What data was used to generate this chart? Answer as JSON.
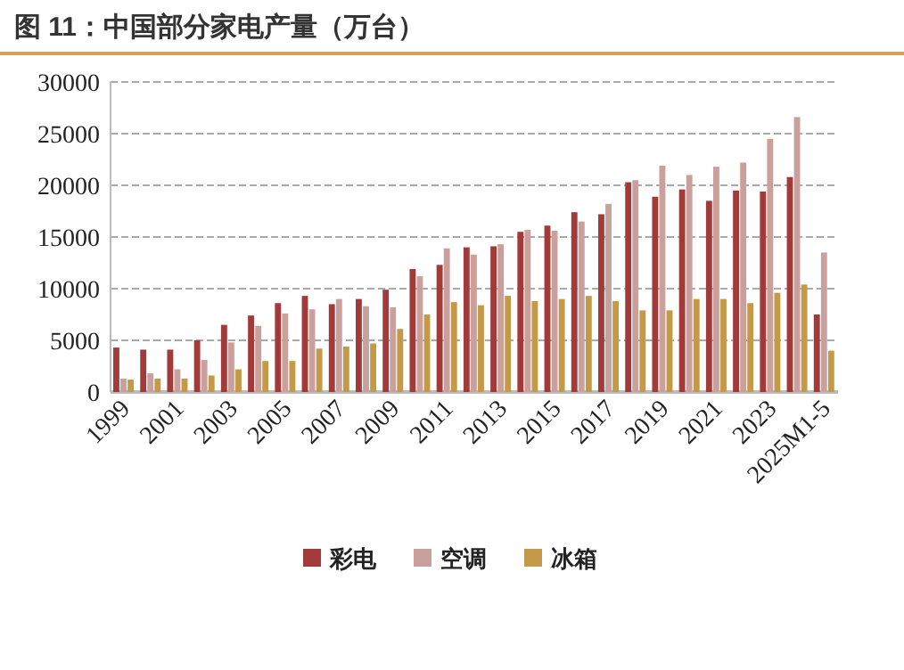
{
  "chart_data": {
    "type": "bar",
    "title": "图 11：中国部分家电产量（万台）",
    "categories": [
      "1999",
      null,
      "2001",
      null,
      "2003",
      null,
      "2005",
      null,
      "2007",
      null,
      "2009",
      null,
      "2011",
      null,
      "2013",
      null,
      "2015",
      null,
      "2017",
      null,
      "2019",
      null,
      "2021",
      null,
      "2023",
      null,
      "2025M1-5"
    ],
    "series": [
      {
        "name": "彩电",
        "color": "#a33a3a",
        "values": [
          4300,
          4100,
          4100,
          5000,
          6500,
          7400,
          8600,
          9300,
          8500,
          9000,
          9900,
          11900,
          12300,
          14000,
          14100,
          15500,
          16100,
          17400,
          17200,
          20300,
          18900,
          19600,
          18500,
          19500,
          19400,
          20800,
          7500
        ]
      },
      {
        "name": "空调",
        "color": "#c9a09c",
        "values": [
          1300,
          1800,
          2200,
          3100,
          4800,
          6400,
          7600,
          8000,
          9000,
          8300,
          8200,
          11200,
          13900,
          13300,
          14300,
          15700,
          15600,
          16500,
          18200,
          20500,
          21900,
          21000,
          21800,
          22200,
          24500,
          26600,
          13500
        ]
      },
      {
        "name": "冰箱",
        "color": "#c49a48",
        "values": [
          1200,
          1300,
          1300,
          1600,
          2200,
          3000,
          3000,
          4200,
          4400,
          4700,
          6100,
          7500,
          8700,
          8400,
          9300,
          8800,
          9000,
          9300,
          8800,
          7900,
          7900,
          9000,
          9000,
          8600,
          9600,
          10400,
          4000
        ]
      }
    ],
    "ylim": [
      0,
      30000
    ],
    "yticks": [
      0,
      5000,
      10000,
      15000,
      20000,
      25000,
      30000
    ],
    "grid": "y",
    "legend": "bottom"
  }
}
